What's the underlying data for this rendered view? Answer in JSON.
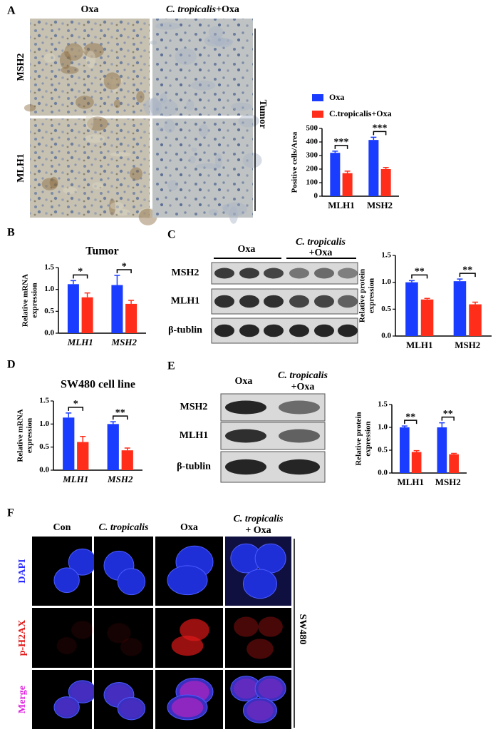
{
  "panel_labels": [
    "A",
    "B",
    "C",
    "D",
    "E",
    "F"
  ],
  "ihc": {
    "columns": [
      [
        "Oxa"
      ],
      [
        "C. tropicalis",
        "+Oxa"
      ]
    ],
    "rows": [
      "MSH2",
      "MLH1"
    ],
    "group": "Tumor"
  },
  "blots": [
    {
      "groups": [
        [
          "Oxa"
        ],
        [
          "C. tropicalis",
          "+Oxa"
        ]
      ],
      "rows": [
        "MSH2",
        "MLH1",
        "β-tublin"
      ]
    },
    {
      "groups": [
        [
          "Oxa"
        ],
        [
          "C. tropicalis",
          "+Oxa"
        ]
      ],
      "rows": [
        "MSH2",
        "MLH1",
        "β-tublin"
      ]
    }
  ],
  "if_panel": {
    "columns": [
      [
        "Con"
      ],
      [
        "C. tropicalis"
      ],
      [
        "Oxa"
      ],
      [
        "C. tropicalis",
        "+ Oxa"
      ]
    ],
    "rows": [
      "DAPI",
      "p-H2AX",
      "Merge"
    ],
    "group": "SW480"
  },
  "chart_data": [
    {
      "type": "bar",
      "ylabel": "Positive cells/Area",
      "categories": [
        "MLH1",
        "MSH2"
      ],
      "series": [
        {
          "name": "Oxa",
          "color": "#1a3cff",
          "values": [
            320,
            415
          ],
          "errors": [
            12,
            20
          ]
        },
        {
          "name": "C.tropicalis+Oxa",
          "color": "#ff2d1a",
          "values": [
            170,
            200
          ],
          "errors": [
            15,
            12
          ]
        }
      ],
      "significance": [
        "***",
        "***"
      ],
      "ylim": [
        0,
        500
      ],
      "yticks": [
        0,
        100,
        200,
        300,
        400,
        500
      ]
    },
    {
      "type": "bar",
      "title": "Tumor",
      "ylabel": [
        "Relative mRNA",
        "expression"
      ],
      "categories": [
        "MLH1",
        "MSH2"
      ],
      "series": [
        {
          "color": "#1a3cff",
          "values": [
            1.12,
            1.1
          ],
          "errors": [
            0.08,
            0.22
          ]
        },
        {
          "color": "#ff2d1a",
          "values": [
            0.82,
            0.67
          ],
          "errors": [
            0.1,
            0.08
          ]
        }
      ],
      "significance": [
        "*",
        "*"
      ],
      "ylim": [
        0,
        1.5
      ],
      "yticks": [
        {
          "value": 0,
          "label": "0.0"
        },
        0.5,
        {
          "value": 1,
          "label": "1.0"
        },
        1.5
      ]
    },
    {
      "type": "bar",
      "ylabel": [
        "Relative protein",
        "expression"
      ],
      "categories": [
        "MLH1",
        "MSH2"
      ],
      "series": [
        {
          "color": "#1a3cff",
          "values": [
            1.0,
            1.02
          ],
          "errors": [
            0.03,
            0.04
          ]
        },
        {
          "color": "#ff2d1a",
          "values": [
            0.68,
            0.59
          ],
          "errors": [
            0.02,
            0.04
          ]
        }
      ],
      "significance": [
        "**",
        "**"
      ],
      "ylim": [
        0,
        1.5
      ],
      "yticks": [
        {
          "value": 0,
          "label": "0.0"
        },
        0.5,
        {
          "value": 1,
          "label": "1.0"
        },
        1.5
      ]
    },
    {
      "type": "bar",
      "title": "SW480 cell line",
      "ylabel": [
        "Relative mRNA",
        "expression"
      ],
      "categories": [
        "MLH1",
        "MSH2"
      ],
      "series": [
        {
          "color": "#1a3cff",
          "values": [
            1.14,
            1.0
          ],
          "errors": [
            0.1,
            0.05
          ]
        },
        {
          "color": "#ff2d1a",
          "values": [
            0.61,
            0.43
          ],
          "errors": [
            0.12,
            0.05
          ]
        }
      ],
      "significance": [
        "*",
        "**"
      ],
      "ylim": [
        0,
        1.5
      ],
      "yticks": [
        {
          "value": 0,
          "label": "0.0"
        },
        0.5,
        {
          "value": 1,
          "label": "1.0"
        },
        1.5
      ]
    },
    {
      "type": "bar",
      "ylabel": [
        "Relative protein",
        "expression"
      ],
      "categories": [
        "MLH1",
        "MSH2"
      ],
      "series": [
        {
          "color": "#1a3cff",
          "values": [
            1.0,
            1.0
          ],
          "errors": [
            0.03,
            0.1
          ]
        },
        {
          "color": "#ff2d1a",
          "values": [
            0.46,
            0.41
          ],
          "errors": [
            0.03,
            0.02
          ]
        }
      ],
      "significance": [
        "**",
        "**"
      ],
      "ylim": [
        0,
        1.5
      ],
      "yticks": [
        {
          "value": 0,
          "label": "0.0"
        },
        0.5,
        {
          "value": 1,
          "label": "1.0"
        },
        1.5
      ]
    }
  ]
}
